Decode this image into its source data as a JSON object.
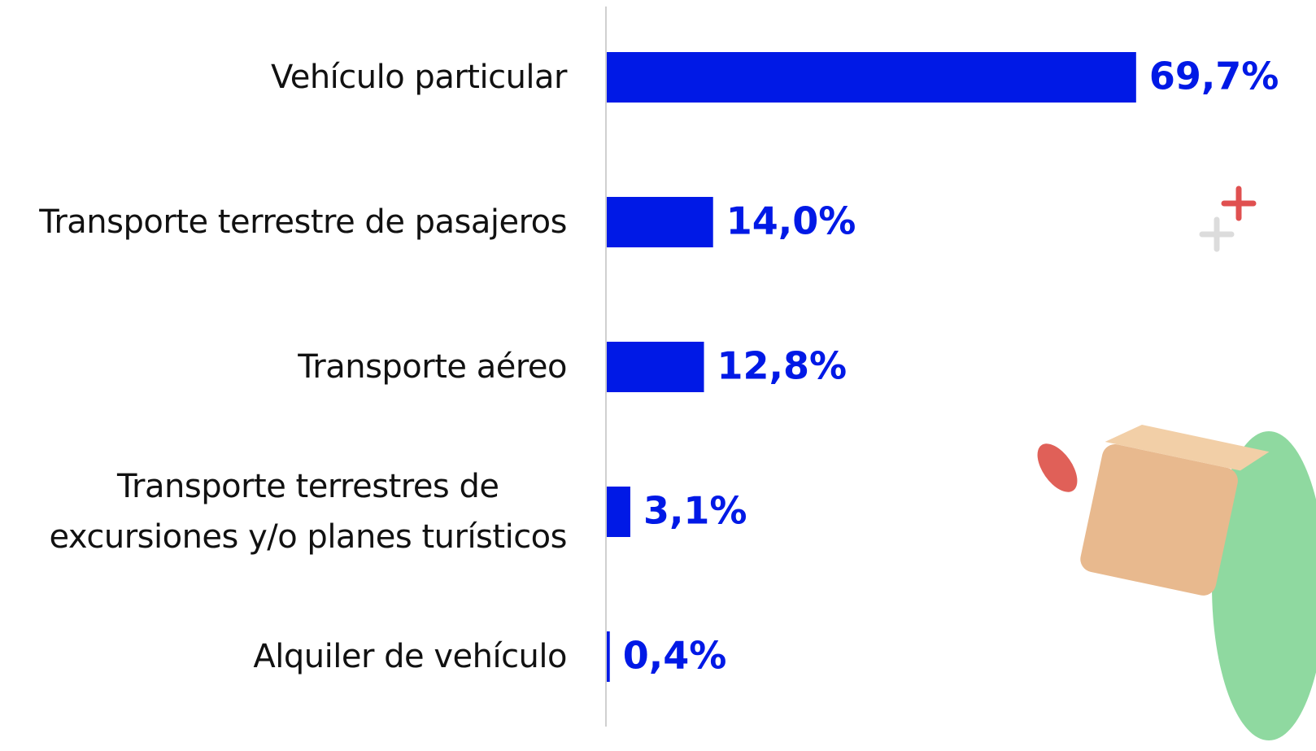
{
  "chart_data": {
    "type": "bar",
    "orientation": "horizontal",
    "categories": [
      "Vehículo particular",
      "Transporte terrestre de pasajeros",
      "Transporte aéreo",
      "Transporte terrestres de\nexcursiones y/o planes turísticos",
      "Alquiler de vehículo"
    ],
    "values": [
      69.7,
      14.0,
      12.8,
      3.1,
      0.4
    ],
    "value_labels": [
      "69,7%",
      "14,0%",
      "12,8%",
      "3,1%",
      "0,4%"
    ],
    "color": "#0019e6",
    "xlim": [
      0,
      80
    ]
  }
}
